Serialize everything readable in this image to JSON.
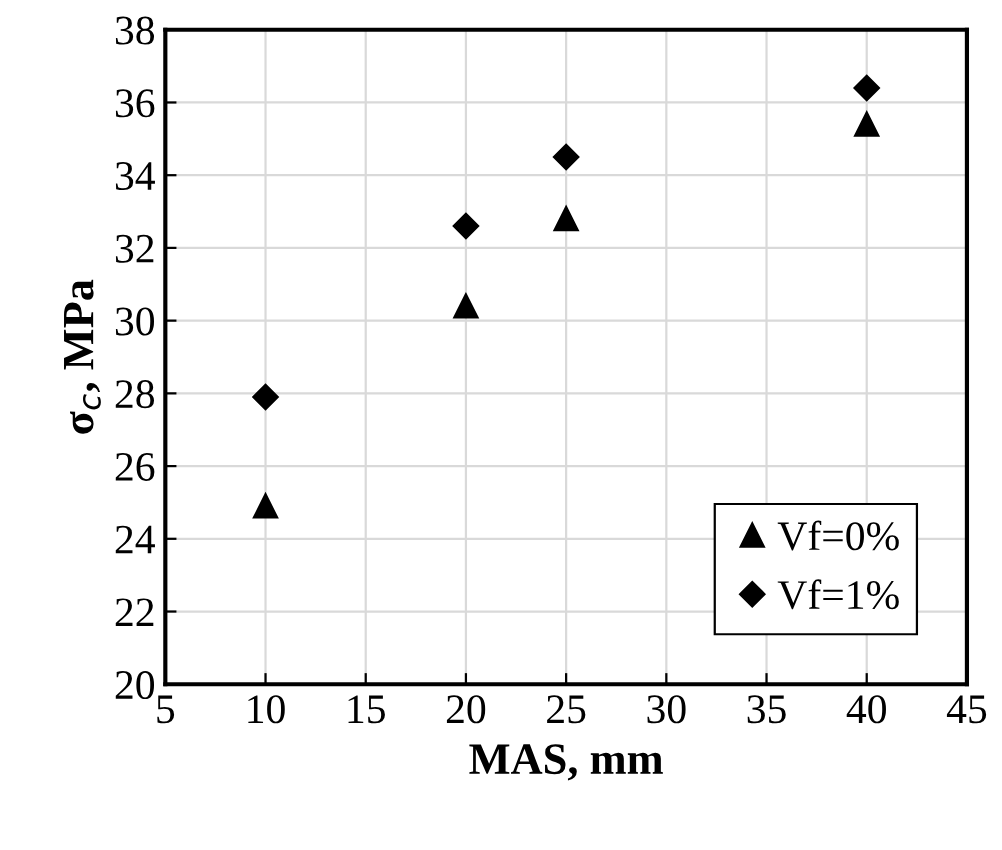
{
  "chart_data": {
    "type": "scatter",
    "xlabel": "MAS, mm",
    "ylabel": "σ$_{c}$, MPa",
    "x": [
      10,
      20,
      25,
      40
    ],
    "series": [
      {
        "name": "Vf=0%",
        "color": "#000000",
        "marker": "triangle",
        "values": [
          24.9,
          30.4,
          32.8,
          35.4
        ]
      },
      {
        "name": "Vf=1%",
        "color": "#000000",
        "marker": "diamond",
        "values": [
          27.9,
          32.6,
          34.5,
          36.4
        ]
      }
    ],
    "xlim": [
      5,
      45
    ],
    "xticks": [
      5,
      10,
      15,
      20,
      25,
      30,
      35,
      40,
      45
    ],
    "ylim": [
      20,
      38
    ],
    "yticks": [
      20,
      22,
      24,
      26,
      28,
      30,
      32,
      34,
      36,
      38
    ],
    "grid": true,
    "legend": "bottom right"
  }
}
